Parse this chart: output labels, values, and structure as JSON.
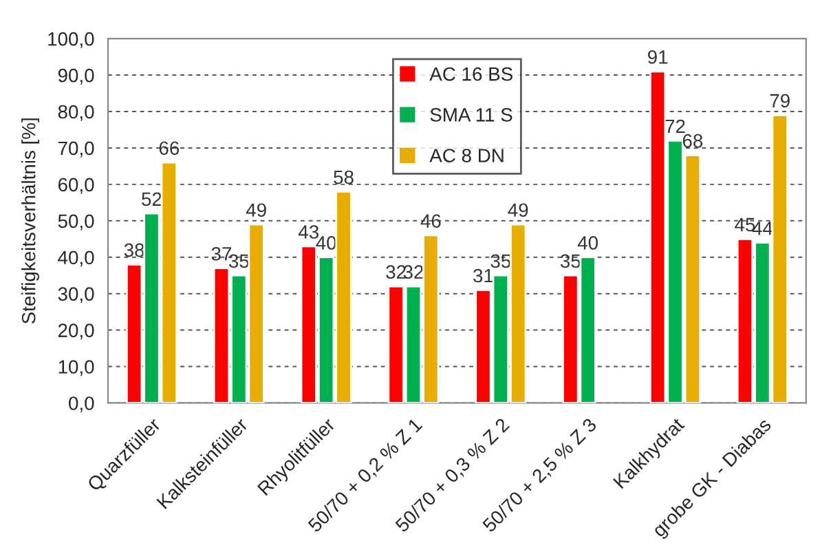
{
  "chart_data": {
    "type": "bar",
    "ylabel": "Steifigkeitsverhältnis [%]",
    "categories": [
      "Quarzfüller",
      "Kalksteinfüller",
      "Rhyolitfüller",
      "50/70 + 0,2 % Z 1",
      "50/70 + 0,3 % Z 2",
      "50/70 + 2,5 % Z 3",
      "Kalkhydrat",
      "grobe GK - Diabas"
    ],
    "series": [
      {
        "name": "AC 16 BS",
        "color": "#ff0000",
        "values": [
          38,
          37,
          43,
          32,
          31,
          35,
          91,
          45
        ]
      },
      {
        "name": "SMA 11 S",
        "color": "#00b050",
        "values": [
          52,
          35,
          40,
          32,
          35,
          40,
          72,
          44
        ]
      },
      {
        "name": "AC 8 DN",
        "color": "#e6ac00",
        "values": [
          66,
          49,
          58,
          46,
          49,
          null,
          68,
          79
        ]
      }
    ],
    "ylim": [
      0,
      100
    ],
    "yticks": [
      {
        "value": 0,
        "label": "0,0"
      },
      {
        "value": 10,
        "label": "10,0"
      },
      {
        "value": 20,
        "label": "20,0"
      },
      {
        "value": 30,
        "label": "30,0"
      },
      {
        "value": 40,
        "label": "40,0"
      },
      {
        "value": 50,
        "label": "50,0"
      },
      {
        "value": 60,
        "label": "60,0"
      },
      {
        "value": 70,
        "label": "70,0"
      },
      {
        "value": 80,
        "label": "80,0"
      },
      {
        "value": 90,
        "label": "90,0"
      },
      {
        "value": 100,
        "label": "100,0"
      }
    ],
    "grid": "y",
    "legend": "top",
    "data_labels": true
  }
}
